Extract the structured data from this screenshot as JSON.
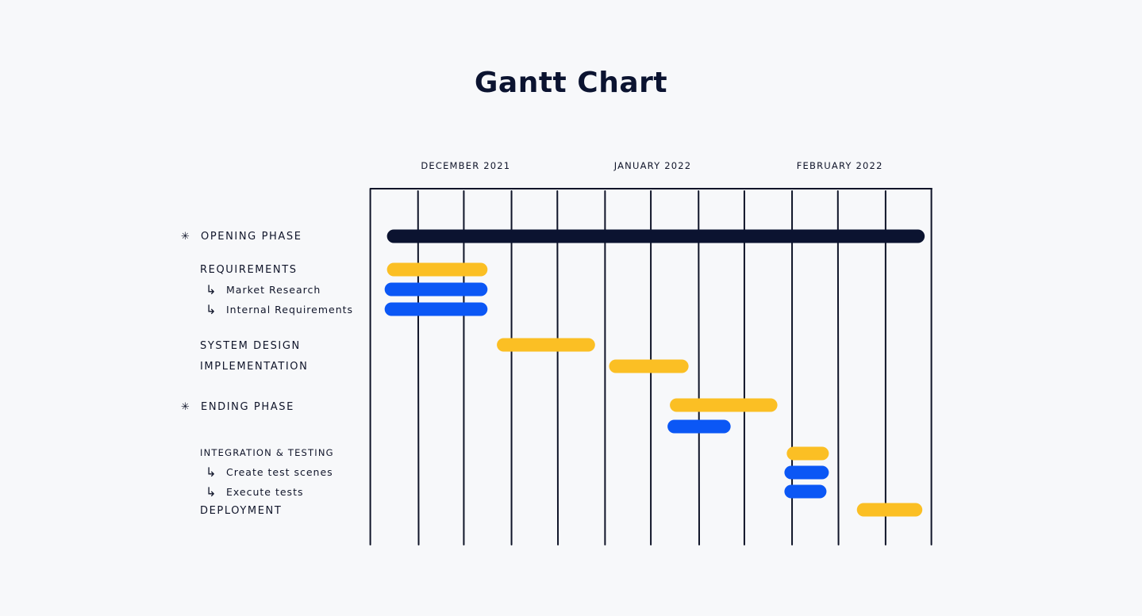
{
  "title": "Gantt Chart",
  "colors": {
    "background": "#f7f8fa",
    "ink": "#0b1330",
    "grid": "#0f1428",
    "phase": "#0b1330",
    "task": "#fbbf24",
    "subtask": "#0b57f5"
  },
  "chart_data": {
    "type": "gantt",
    "months": [
      "DECEMBER 2021",
      "JANUARY 2022",
      "FEBRUARY 2022"
    ],
    "columns_per_month": 4,
    "rows": [
      {
        "label": "OPENING PHASE",
        "kind": "phase",
        "marker": "✳"
      },
      {
        "label": "REQUIREMENTS",
        "kind": "task"
      },
      {
        "label": "Market Research",
        "kind": "subtask",
        "arrow": "↳"
      },
      {
        "label": "Internal Requirements",
        "kind": "subtask",
        "arrow": "↳"
      },
      {
        "label": "SYSTEM DESIGN",
        "kind": "task"
      },
      {
        "label": "IMPLEMENTATION",
        "kind": "task"
      },
      {
        "label": "ENDING PHASE",
        "kind": "phase",
        "marker": "✳"
      },
      {
        "label": "INTEGRATION & TESTING",
        "kind": "task"
      },
      {
        "label": "Create test scenes",
        "kind": "subtask",
        "arrow": "↳"
      },
      {
        "label": "Execute tests",
        "kind": "subtask",
        "arrow": "↳"
      },
      {
        "label": "DEPLOYMENT",
        "kind": "task"
      }
    ],
    "bars": [
      {
        "kind": "phase",
        "start": 0.35,
        "end": 11.85
      },
      {
        "kind": "task",
        "start": 0.35,
        "end": 2.5
      },
      {
        "kind": "subtask",
        "start": 0.3,
        "end": 2.5
      },
      {
        "kind": "subtask",
        "start": 0.3,
        "end": 2.5
      },
      {
        "kind": "task",
        "start": 2.7,
        "end": 4.8
      },
      {
        "kind": "task",
        "start": 5.1,
        "end": 6.8
      },
      {
        "kind": "task",
        "start": 6.4,
        "end": 8.7
      },
      {
        "kind": "subtask",
        "start": 6.35,
        "end": 7.7
      },
      {
        "kind": "task",
        "start": 8.9,
        "end": 9.8
      },
      {
        "kind": "subtask",
        "start": 8.85,
        "end": 9.8
      },
      {
        "kind": "subtask",
        "start": 8.85,
        "end": 9.75
      },
      {
        "kind": "task",
        "start": 10.4,
        "end": 11.8
      }
    ]
  }
}
